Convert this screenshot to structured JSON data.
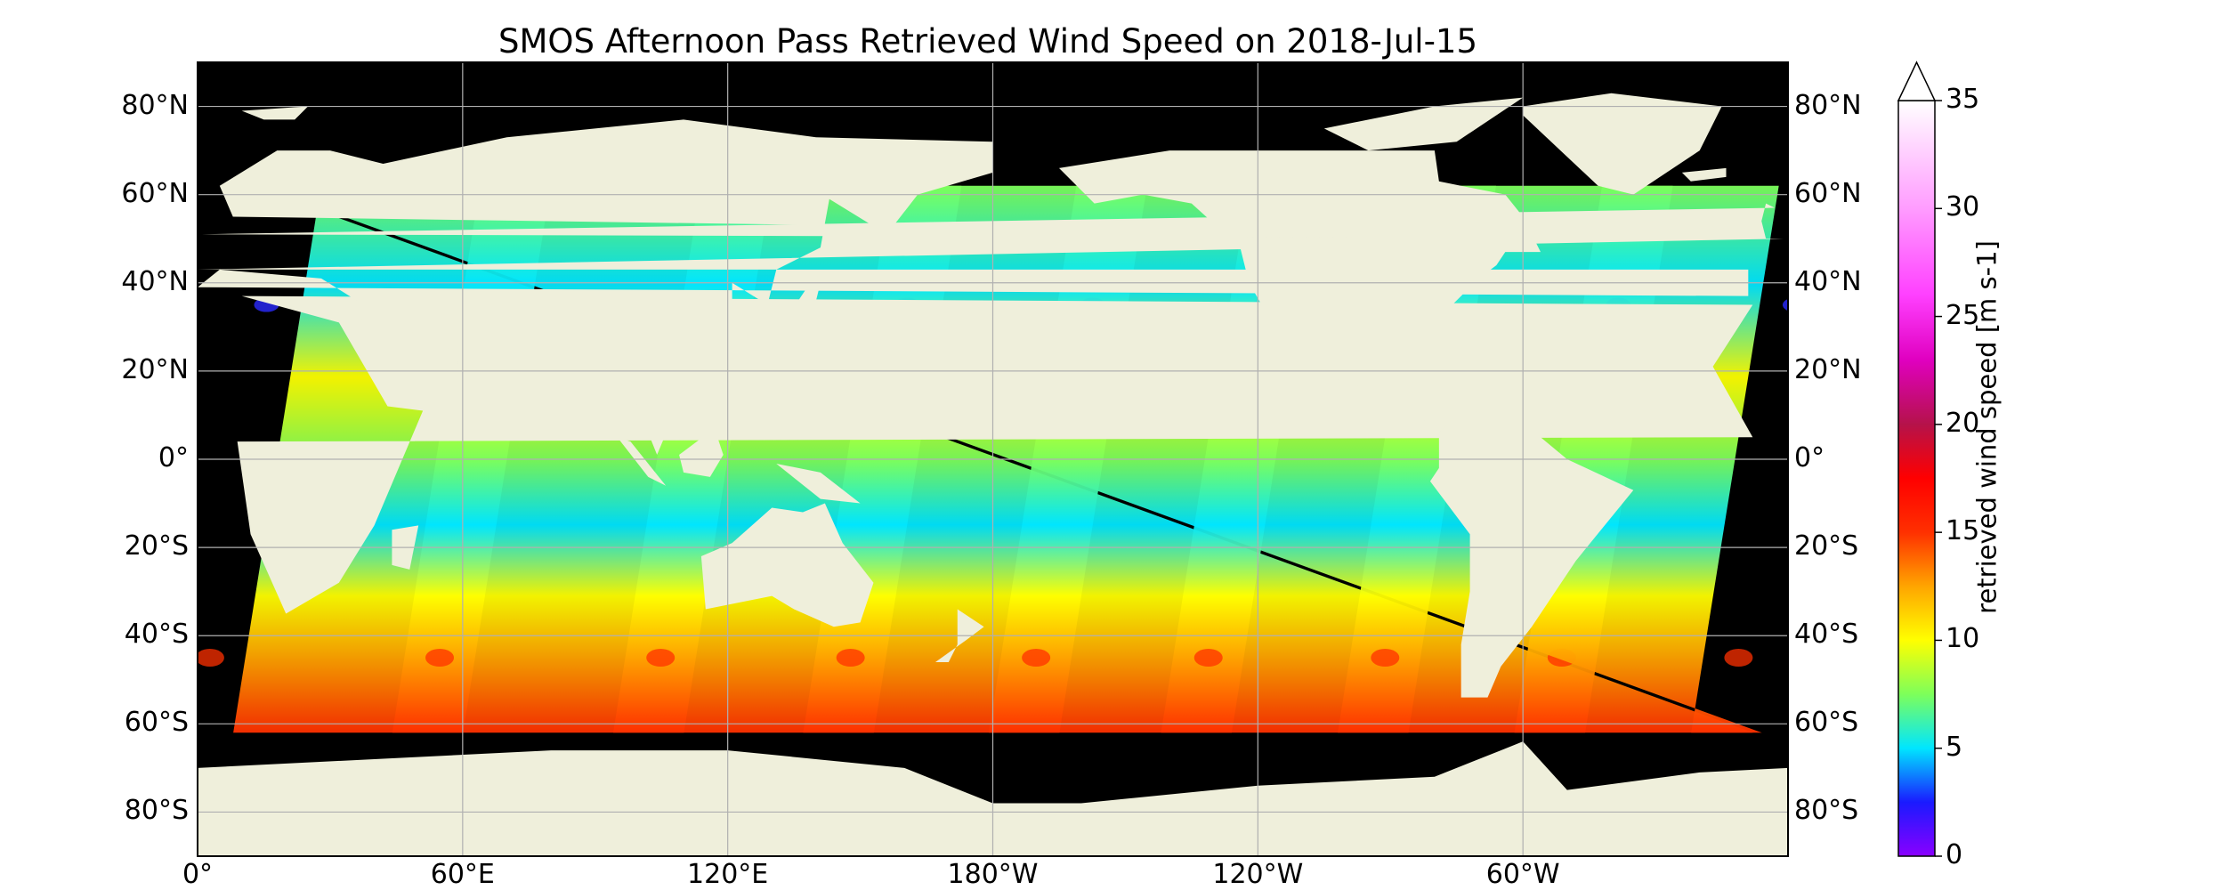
{
  "title": "SMOS Afternoon Pass Retrieved Wind Speed on 2018-Jul-15",
  "map": {
    "projection": "Plate Carree",
    "lon_range": [
      0,
      360
    ],
    "lat_range": [
      -90,
      90
    ],
    "gridlines": true,
    "colors": {
      "land": "#efefdb",
      "no_data": "#000000",
      "grid": "#b0b0b0"
    }
  },
  "lat_ticks": [
    "80°N",
    "60°N",
    "40°N",
    "20°N",
    "0°",
    "20°S",
    "40°S",
    "60°S",
    "80°S"
  ],
  "lon_ticks": [
    "0°",
    "60°E",
    "120°E",
    "180°W",
    "120°W",
    "60°W"
  ],
  "colorbar": {
    "label": "retrieved wind speed [m s-1]",
    "min": 0,
    "max": 35,
    "extend": "max",
    "ticks": [
      "0",
      "5",
      "10",
      "15",
      "20",
      "25",
      "30",
      "35"
    ],
    "stops": [
      {
        "value": 0,
        "color": "#8a00ff"
      },
      {
        "value": 2.5,
        "color": "#1a1aff"
      },
      {
        "value": 5,
        "color": "#00e6ff"
      },
      {
        "value": 7.5,
        "color": "#7dff5a"
      },
      {
        "value": 10,
        "color": "#ffff00"
      },
      {
        "value": 12.5,
        "color": "#ffa500"
      },
      {
        "value": 15,
        "color": "#ff3000"
      },
      {
        "value": 17.5,
        "color": "#ff0000"
      },
      {
        "value": 20,
        "color": "#b5124a"
      },
      {
        "value": 23,
        "color": "#e000c0"
      },
      {
        "value": 26,
        "color": "#ff40ff"
      },
      {
        "value": 30,
        "color": "#ff9cff"
      },
      {
        "value": 35,
        "color": "#ffffff"
      }
    ]
  }
}
